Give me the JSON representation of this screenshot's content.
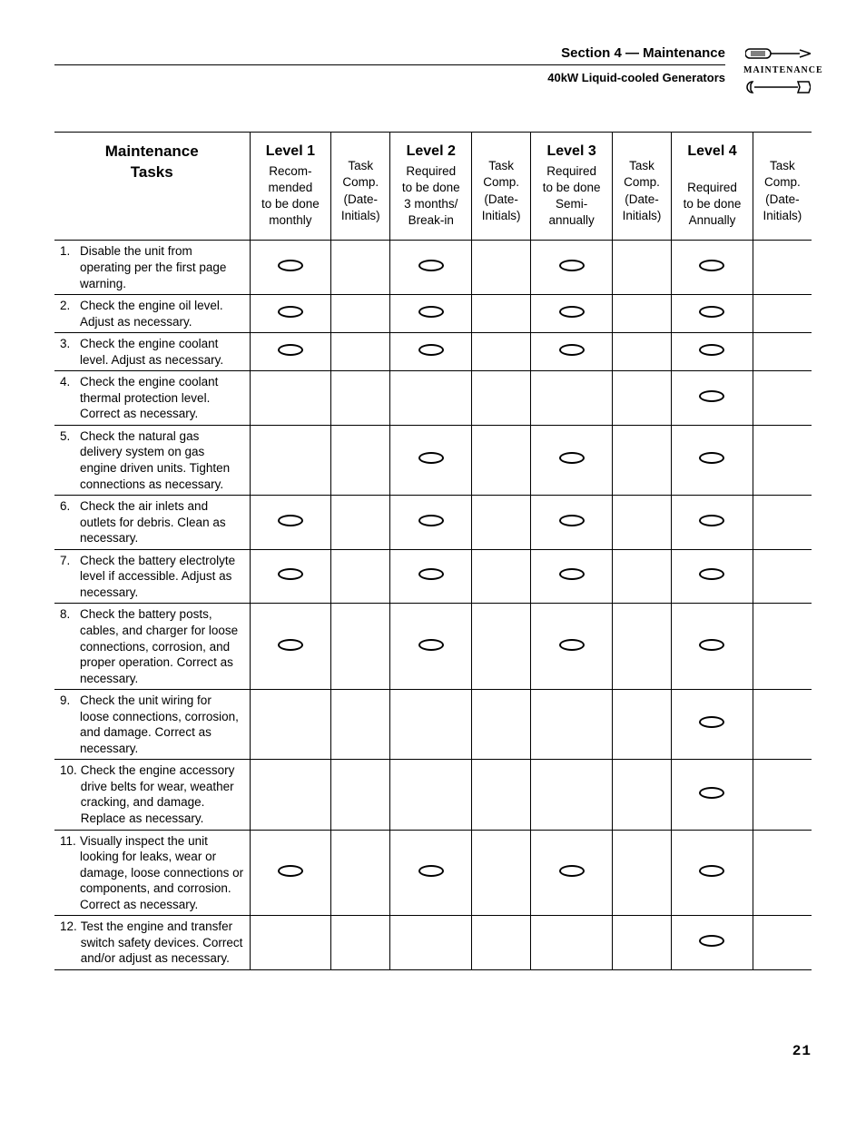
{
  "header": {
    "section_title": "Section 4 — Maintenance",
    "subtitle": "40kW Liquid-cooled Generators",
    "icon_label": "MAINTENANCE"
  },
  "page_number": "21",
  "columns": {
    "tasks_h1": "Maintenance",
    "tasks_h2": "Tasks",
    "level1_h": "Level 1",
    "level1_sub": "Recom-\nmended\nto be done\nmonthly",
    "level2_h": "Level 2",
    "level2_sub": "Required\nto be done\n3 months/\nBreak-in",
    "level3_h": "Level 3",
    "level3_sub": "Required\nto be done\nSemi-\nannually",
    "level4_h": "Level 4",
    "level4_sub": "Required\nto be done\nAnnually",
    "task_comp": "Task\nComp.\n(Date-\nInitials)"
  },
  "rows": [
    {
      "num": "1.",
      "text": "Disable the unit from operating per the first page warning.",
      "marks": [
        true,
        true,
        true,
        true
      ]
    },
    {
      "num": "2.",
      "text": "Check the engine oil level. Adjust as necessary.",
      "marks": [
        true,
        true,
        true,
        true
      ]
    },
    {
      "num": "3.",
      "text": "Check the engine coolant level. Adjust as necessary.",
      "marks": [
        true,
        true,
        true,
        true
      ]
    },
    {
      "num": "4.",
      "text": "Check the engine coolant thermal protection level. Correct as necessary.",
      "marks": [
        false,
        false,
        false,
        true
      ]
    },
    {
      "num": "5.",
      "text": "Check the natural gas delivery system on gas engine driven units. Tighten connections as necessary.",
      "marks": [
        false,
        true,
        true,
        true
      ]
    },
    {
      "num": "6.",
      "text": "Check the air inlets and outlets for debris. Clean as necessary.",
      "marks": [
        true,
        true,
        true,
        true
      ]
    },
    {
      "num": "7.",
      "text": "Check the battery electrolyte level if accessible. Adjust as necessary.",
      "marks": [
        true,
        true,
        true,
        true
      ]
    },
    {
      "num": "8.",
      "text": "Check the battery posts, cables, and charger for loose connections, corrosion, and proper operation. Correct as necessary.",
      "marks": [
        true,
        true,
        true,
        true
      ]
    },
    {
      "num": "9.",
      "text": "Check the unit wiring for loose connections, corrosion, and damage. Correct as necessary.",
      "marks": [
        false,
        false,
        false,
        true
      ]
    },
    {
      "num": "10.",
      "text": "Check the engine accessory drive belts for wear, weather cracking, and damage. Replace as necessary.",
      "marks": [
        false,
        false,
        false,
        true
      ]
    },
    {
      "num": "11.",
      "text": "Visually inspect the unit looking for leaks, wear or damage, loose connections or components, and corrosion. Correct as necessary.",
      "marks": [
        true,
        true,
        true,
        true
      ]
    },
    {
      "num": "12.",
      "text": "Test the engine and transfer switch safety devices. Correct and/or adjust as necessary.",
      "marks": [
        false,
        false,
        false,
        true
      ]
    }
  ]
}
